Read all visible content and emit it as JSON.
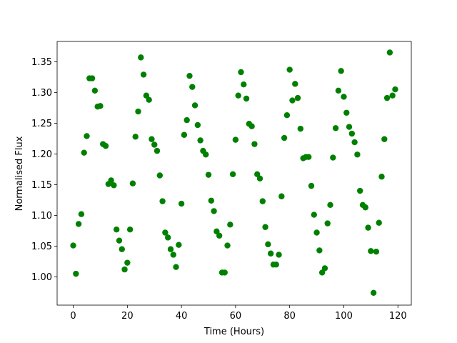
{
  "chart_data": {
    "type": "scatter",
    "xlabel": "Time (Hours)",
    "ylabel": "Normalised Flux",
    "color": "green",
    "x": [
      0,
      1,
      2,
      3,
      4,
      5,
      6,
      7,
      8,
      9,
      10,
      11,
      12,
      13,
      14,
      15,
      16,
      17,
      18,
      19,
      20,
      21,
      22,
      23,
      24,
      25,
      26,
      27,
      28,
      29,
      30,
      31,
      32,
      33,
      34,
      35,
      36,
      37,
      38,
      39,
      40,
      41,
      42,
      43,
      44,
      45,
      46,
      47,
      48,
      49,
      50,
      51,
      52,
      53,
      54,
      55,
      56,
      57,
      58,
      59,
      60,
      61,
      62,
      63,
      64,
      65,
      66,
      67,
      68,
      69,
      70,
      71,
      72,
      73,
      74,
      75,
      76,
      77,
      78,
      79,
      80,
      81,
      82,
      83,
      84,
      85,
      86,
      87,
      88,
      89,
      90,
      91,
      92,
      93,
      94,
      95,
      96,
      97,
      98,
      99,
      100,
      101,
      102,
      103,
      104,
      105,
      106,
      107,
      108,
      109,
      110,
      111,
      112,
      113,
      114,
      115,
      116,
      117,
      118,
      119
    ],
    "values": [
      1.051,
      1.005,
      1.086,
      1.102,
      1.202,
      1.229,
      1.323,
      1.323,
      1.303,
      1.277,
      1.278,
      1.216,
      1.213,
      1.151,
      1.157,
      1.149,
      1.077,
      1.059,
      1.045,
      1.012,
      1.023,
      1.077,
      1.152,
      1.228,
      1.269,
      1.357,
      1.329,
      1.295,
      1.288,
      1.224,
      1.215,
      1.205,
      1.165,
      1.123,
      1.072,
      1.064,
      1.045,
      1.036,
      1.016,
      1.052,
      1.119,
      1.231,
      1.255,
      1.327,
      1.309,
      1.279,
      1.247,
      1.222,
      1.205,
      1.199,
      1.166,
      1.124,
      1.107,
      1.074,
      1.067,
      1.007,
      1.007,
      1.051,
      1.085,
      1.167,
      1.223,
      1.295,
      1.333,
      1.313,
      1.29,
      1.249,
      1.245,
      1.216,
      1.167,
      1.16,
      1.123,
      1.081,
      1.053,
      1.038,
      1.02,
      1.02,
      1.036,
      1.131,
      1.226,
      1.263,
      1.337,
      1.287,
      1.314,
      1.291,
      1.241,
      1.193,
      1.195,
      1.195,
      1.148,
      1.101,
      1.072,
      1.043,
      1.007,
      1.014,
      1.087,
      1.117,
      1.194,
      1.242,
      1.303,
      1.335,
      1.293,
      1.267,
      1.244,
      1.233,
      1.219,
      1.199,
      1.14,
      1.117,
      1.113,
      1.08,
      1.042,
      0.974,
      1.041,
      1.088,
      1.163,
      1.224,
      1.291,
      1.365,
      1.295,
      1.305
    ],
    "xlim": [
      -5.95,
      124.95
    ],
    "xticks": [
      0,
      20,
      40,
      60,
      80,
      100,
      120
    ],
    "ylim": [
      0.954,
      1.383
    ],
    "yticks": [
      {
        "value": 1.0,
        "label": "1.00"
      },
      {
        "value": 1.05,
        "label": "1.05"
      },
      {
        "value": 1.1,
        "label": "1.10"
      },
      {
        "value": 1.15,
        "label": "1.15"
      },
      {
        "value": 1.2,
        "label": "1.20"
      },
      {
        "value": 1.25,
        "label": "1.25"
      },
      {
        "value": 1.3,
        "label": "1.30"
      },
      {
        "value": 1.35,
        "label": "1.35"
      }
    ],
    "grid": false
  }
}
